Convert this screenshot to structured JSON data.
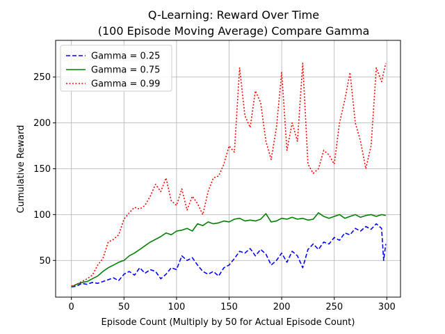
{
  "chart_data": {
    "type": "line",
    "title_lines": [
      "Q-Learning: Reward Over Time",
      "(100 Episode Moving Average) Compare Gamma"
    ],
    "xlabel": "Episode Count (Multiply by 50 for Actual Episode Count)",
    "ylabel": "Cumulative Reward",
    "xlim": [
      -15,
      313
    ],
    "ylim": [
      10,
      290
    ],
    "xticks": [
      0,
      50,
      100,
      150,
      200,
      250,
      300
    ],
    "yticks": [
      50,
      100,
      150,
      200,
      250
    ],
    "grid": true,
    "legend_position": "top-left",
    "series": [
      {
        "name": "Gamma = 0.25",
        "color": "#0000ff",
        "style": "dashed",
        "x": [
          0,
          5,
          10,
          15,
          20,
          25,
          30,
          35,
          40,
          45,
          50,
          55,
          60,
          65,
          70,
          75,
          80,
          85,
          90,
          95,
          100,
          105,
          110,
          115,
          120,
          125,
          130,
          135,
          140,
          145,
          150,
          155,
          160,
          165,
          170,
          175,
          180,
          185,
          190,
          195,
          200,
          205,
          210,
          215,
          220,
          225,
          230,
          235,
          240,
          245,
          250,
          255,
          260,
          265,
          270,
          275,
          280,
          285,
          290,
          295,
          297,
          299
        ],
        "values": [
          21,
          22,
          25,
          24,
          26,
          25,
          27,
          29,
          31,
          28,
          35,
          38,
          34,
          42,
          36,
          40,
          38,
          30,
          35,
          42,
          40,
          55,
          50,
          53,
          45,
          38,
          35,
          38,
          33,
          42,
          45,
          52,
          60,
          58,
          63,
          55,
          62,
          57,
          45,
          50,
          58,
          48,
          60,
          55,
          42,
          62,
          68,
          62,
          70,
          68,
          75,
          72,
          80,
          78,
          85,
          82,
          87,
          84,
          90,
          85,
          50,
          68
        ]
      },
      {
        "name": "Gamma = 0.75",
        "color": "#008000",
        "style": "solid",
        "x": [
          0,
          5,
          10,
          15,
          20,
          25,
          30,
          35,
          40,
          45,
          50,
          55,
          60,
          65,
          70,
          75,
          80,
          85,
          90,
          95,
          100,
          105,
          110,
          115,
          120,
          125,
          130,
          135,
          140,
          145,
          150,
          155,
          160,
          165,
          170,
          175,
          180,
          185,
          190,
          195,
          200,
          205,
          210,
          215,
          220,
          225,
          230,
          235,
          240,
          245,
          250,
          255,
          260,
          265,
          270,
          275,
          280,
          285,
          290,
          295,
          299
        ],
        "values": [
          21,
          24,
          26,
          27,
          30,
          33,
          38,
          42,
          45,
          48,
          50,
          55,
          58,
          62,
          66,
          70,
          73,
          76,
          80,
          78,
          82,
          83,
          85,
          82,
          90,
          88,
          92,
          90,
          91,
          93,
          92,
          95,
          96,
          93,
          94,
          93,
          95,
          101,
          92,
          93,
          96,
          95,
          97,
          95,
          96,
          94,
          95,
          102,
          98,
          96,
          98,
          100,
          96,
          98,
          100,
          97,
          99,
          100,
          98,
          100,
          99
        ]
      },
      {
        "name": "Gamma = 0.99",
        "color": "#ff0000",
        "style": "dotted",
        "x": [
          0,
          5,
          10,
          15,
          20,
          25,
          30,
          35,
          40,
          45,
          50,
          55,
          60,
          65,
          70,
          75,
          80,
          85,
          90,
          95,
          100,
          105,
          110,
          115,
          120,
          125,
          130,
          135,
          140,
          145,
          150,
          155,
          160,
          165,
          170,
          175,
          180,
          185,
          190,
          195,
          200,
          205,
          210,
          215,
          220,
          225,
          230,
          235,
          240,
          245,
          250,
          255,
          260,
          265,
          270,
          275,
          280,
          285,
          290,
          295,
          299
        ],
        "values": [
          22,
          24,
          27,
          30,
          34,
          45,
          52,
          70,
          73,
          78,
          95,
          102,
          108,
          106,
          110,
          120,
          133,
          125,
          140,
          115,
          110,
          128,
          105,
          120,
          112,
          100,
          125,
          140,
          142,
          155,
          175,
          168,
          260,
          208,
          195,
          235,
          222,
          180,
          160,
          195,
          255,
          170,
          200,
          180,
          265,
          155,
          145,
          150,
          170,
          165,
          155,
          200,
          225,
          255,
          200,
          180,
          150,
          175,
          260,
          245,
          265
        ]
      }
    ]
  }
}
